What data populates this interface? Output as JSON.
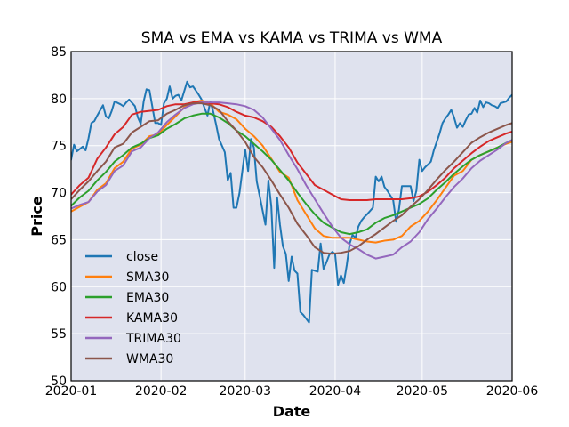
{
  "chart_data": {
    "type": "line",
    "title": "SMA vs EMA vs KAMA vs TRIMA vs WMA",
    "xlabel": "Date",
    "ylabel": "Price",
    "xlim": [
      0,
      152
    ],
    "ylim": [
      50,
      85
    ],
    "xticks": [
      {
        "value": 0,
        "label": "2020-01"
      },
      {
        "value": 31,
        "label": "2020-02"
      },
      {
        "value": 60,
        "label": "2020-03"
      },
      {
        "value": 91,
        "label": "2020-04"
      },
      {
        "value": 121,
        "label": "2020-05"
      },
      {
        "value": 152,
        "label": "2020-06"
      }
    ],
    "yticks": [
      {
        "value": 50,
        "label": "50"
      },
      {
        "value": 55,
        "label": "55"
      },
      {
        "value": 60,
        "label": "60"
      },
      {
        "value": 65,
        "label": "65"
      },
      {
        "value": 70,
        "label": "70"
      },
      {
        "value": 75,
        "label": "75"
      },
      {
        "value": 80,
        "label": "80"
      },
      {
        "value": 85,
        "label": "85"
      }
    ],
    "grid": true,
    "legend_position": "lower-left",
    "series": [
      {
        "name": "close",
        "color": "#1f77b4",
        "x": [
          0,
          1,
          2,
          4,
          5,
          6,
          7,
          8,
          9,
          11,
          12,
          13,
          14,
          15,
          17,
          18,
          19,
          20,
          22,
          23,
          24,
          25,
          26,
          27,
          29,
          30,
          31,
          32,
          33,
          34,
          35,
          36,
          37,
          38,
          40,
          41,
          42,
          44,
          45,
          46,
          47,
          48,
          49,
          50,
          51,
          53,
          54,
          55,
          56,
          57,
          58,
          60,
          61,
          62,
          63,
          64,
          66,
          67,
          68,
          69,
          70,
          71,
          72,
          73,
          74,
          75,
          76,
          77,
          78,
          79,
          80,
          81,
          82,
          83,
          85,
          86,
          87,
          88,
          89,
          90,
          91,
          92,
          93,
          94,
          95,
          96,
          97,
          98,
          99,
          100,
          101,
          102,
          104,
          105,
          106,
          107,
          108,
          109,
          110,
          111,
          112,
          113,
          114,
          115,
          116,
          117,
          118,
          119,
          120,
          121,
          122,
          123,
          124,
          125,
          126,
          127,
          128,
          129,
          130,
          131,
          132,
          133,
          134,
          135,
          136,
          137,
          138,
          139,
          140,
          141,
          142,
          143,
          144,
          145,
          146,
          147,
          148,
          149,
          150,
          151,
          152
        ],
        "values": [
          73.5,
          75.1,
          74.4,
          74.9,
          74.5,
          75.8,
          77.4,
          77.6,
          78.2,
          79.3,
          78.1,
          77.9,
          78.7,
          79.7,
          79.4,
          79.2,
          79.6,
          79.9,
          79.2,
          78.0,
          77.3,
          79.7,
          81.0,
          80.9,
          77.4,
          77.4,
          77.2,
          79.5,
          80.0,
          81.3,
          80.0,
          80.3,
          80.4,
          79.8,
          81.8,
          81.2,
          81.3,
          80.4,
          79.9,
          79.0,
          78.2,
          79.7,
          78.6,
          77.2,
          75.7,
          74.3,
          71.3,
          72.1,
          68.4,
          68.4,
          69.9,
          74.6,
          72.3,
          75.7,
          74.8,
          71.2,
          68.1,
          66.6,
          71.3,
          68.5,
          62.0,
          69.5,
          66.6,
          64.3,
          63.5,
          60.6,
          63.2,
          61.7,
          61.4,
          57.3,
          57.0,
          56.6,
          56.2,
          61.8,
          61.6,
          64.6,
          61.9,
          62.6,
          63.4,
          63.7,
          63.5,
          60.2,
          61.2,
          60.4,
          62.3,
          64.6,
          65.5,
          65.2,
          66.4,
          67.0,
          67.4,
          67.7,
          68.4,
          71.7,
          71.2,
          71.7,
          70.6,
          70.2,
          69.7,
          69.2,
          66.9,
          68.2,
          70.7,
          70.7,
          70.7,
          70.7,
          69.1,
          70.2,
          73.5,
          72.3,
          72.7,
          73.0,
          73.3,
          74.5,
          75.4,
          76.3,
          77.4,
          77.9,
          78.3,
          78.8,
          78.0,
          76.9,
          77.4,
          77.0,
          77.7,
          78.3,
          78.4,
          79.0,
          78.5,
          79.8,
          79.1,
          79.6,
          79.5,
          79.3,
          79.2,
          79.0,
          79.5,
          79.6,
          79.7,
          80.1,
          80.4
        ]
      },
      {
        "name": "SMA30",
        "color": "#ff7f0e",
        "x": [
          0,
          3,
          6,
          9,
          12,
          15,
          18,
          21,
          24,
          27,
          30,
          33,
          36,
          39,
          42,
          45,
          48,
          51,
          54,
          57,
          60,
          63,
          66,
          69,
          72,
          75,
          78,
          81,
          84,
          87,
          90,
          93,
          96,
          99,
          102,
          105,
          108,
          111,
          114,
          117,
          120,
          123,
          126,
          129,
          132,
          135,
          138,
          141,
          144,
          147,
          150,
          152
        ],
        "values": [
          68.0,
          68.5,
          69.0,
          70.3,
          71.0,
          72.6,
          73.3,
          74.7,
          75.1,
          76.0,
          76.2,
          77.2,
          78.1,
          79.1,
          79.6,
          79.8,
          79.5,
          78.6,
          78.3,
          77.8,
          76.8,
          76.0,
          75.0,
          73.6,
          72.2,
          71.6,
          69.2,
          67.7,
          66.2,
          65.4,
          65.2,
          65.2,
          65.2,
          65.0,
          64.8,
          64.7,
          64.9,
          65.0,
          65.4,
          66.4,
          67.0,
          68.0,
          69.2,
          70.5,
          71.8,
          72.3,
          73.5,
          74.0,
          74.4,
          74.8,
          75.2,
          75.4
        ]
      },
      {
        "name": "EMA30",
        "color": "#2ca02c",
        "x": [
          0,
          3,
          6,
          9,
          12,
          15,
          18,
          21,
          24,
          27,
          30,
          33,
          36,
          39,
          42,
          45,
          48,
          51,
          54,
          57,
          60,
          63,
          66,
          69,
          72,
          75,
          78,
          81,
          84,
          87,
          90,
          93,
          96,
          99,
          102,
          105,
          108,
          111,
          114,
          117,
          120,
          123,
          126,
          129,
          132,
          135,
          138,
          141,
          144,
          147,
          150,
          152
        ],
        "values": [
          68.6,
          69.5,
          70.2,
          71.3,
          72.2,
          73.3,
          74.0,
          74.8,
          75.2,
          75.8,
          76.1,
          76.8,
          77.3,
          77.9,
          78.2,
          78.4,
          78.4,
          78.0,
          77.4,
          76.6,
          76.0,
          75.2,
          74.4,
          73.5,
          72.4,
          71.3,
          70.0,
          68.8,
          67.7,
          66.8,
          66.3,
          65.8,
          65.6,
          65.8,
          66.1,
          66.8,
          67.3,
          67.6,
          68.0,
          68.4,
          68.8,
          69.4,
          70.3,
          71.1,
          72.0,
          72.8,
          73.5,
          74.0,
          74.4,
          74.8,
          75.3,
          75.6
        ]
      },
      {
        "name": "KAMA30",
        "color": "#d62728",
        "x": [
          0,
          3,
          6,
          9,
          12,
          15,
          18,
          21,
          24,
          27,
          30,
          33,
          36,
          39,
          42,
          45,
          48,
          51,
          54,
          57,
          60,
          63,
          66,
          69,
          72,
          75,
          78,
          81,
          84,
          87,
          90,
          93,
          96,
          99,
          102,
          105,
          108,
          111,
          114,
          117,
          120,
          123,
          126,
          129,
          132,
          135,
          138,
          141,
          144,
          147,
          150,
          152
        ],
        "values": [
          69.8,
          70.8,
          71.6,
          73.6,
          74.8,
          76.2,
          77.0,
          78.3,
          78.6,
          78.7,
          78.8,
          79.2,
          79.4,
          79.4,
          79.6,
          79.6,
          79.5,
          79.4,
          79.1,
          78.6,
          78.2,
          78.0,
          77.6,
          77.0,
          76.0,
          74.8,
          73.2,
          72.0,
          70.8,
          70.3,
          69.8,
          69.3,
          69.2,
          69.2,
          69.2,
          69.3,
          69.3,
          69.3,
          69.3,
          69.4,
          69.6,
          70.1,
          70.8,
          71.6,
          72.6,
          73.4,
          74.2,
          74.9,
          75.5,
          75.9,
          76.3,
          76.5
        ]
      },
      {
        "name": "TRIMA30",
        "color": "#9467bd",
        "x": [
          0,
          3,
          6,
          9,
          12,
          15,
          18,
          21,
          24,
          27,
          30,
          33,
          36,
          39,
          42,
          45,
          48,
          51,
          54,
          57,
          60,
          63,
          66,
          69,
          72,
          75,
          78,
          81,
          84,
          87,
          90,
          93,
          96,
          99,
          102,
          105,
          108,
          111,
          114,
          117,
          120,
          123,
          126,
          129,
          132,
          135,
          138,
          141,
          144,
          147,
          150,
          152
        ],
        "values": [
          68.3,
          68.7,
          69.0,
          70.1,
          70.8,
          72.3,
          72.9,
          74.4,
          74.8,
          75.8,
          76.4,
          77.5,
          78.3,
          79.0,
          79.4,
          79.6,
          79.6,
          79.6,
          79.5,
          79.4,
          79.2,
          78.8,
          78.0,
          76.8,
          75.6,
          74.0,
          72.5,
          70.8,
          69.3,
          67.8,
          66.4,
          65.2,
          64.5,
          64.0,
          63.4,
          63.0,
          63.2,
          63.4,
          64.2,
          64.8,
          65.8,
          67.2,
          68.3,
          69.5,
          70.6,
          71.5,
          72.6,
          73.4,
          74.0,
          74.6,
          75.3,
          75.6
        ]
      },
      {
        "name": "WMA30",
        "color": "#8c564b",
        "x": [
          0,
          3,
          6,
          9,
          12,
          15,
          18,
          21,
          24,
          27,
          30,
          33,
          36,
          39,
          42,
          45,
          48,
          51,
          54,
          57,
          60,
          63,
          66,
          69,
          72,
          75,
          78,
          81,
          84,
          87,
          90,
          93,
          96,
          99,
          102,
          105,
          108,
          111,
          114,
          117,
          120,
          123,
          126,
          129,
          132,
          135,
          138,
          141,
          144,
          147,
          150,
          152
        ],
        "values": [
          69.3,
          70.3,
          71.2,
          72.3,
          73.3,
          74.8,
          75.2,
          76.4,
          77.0,
          77.6,
          77.7,
          78.4,
          78.8,
          79.3,
          79.5,
          79.5,
          79.3,
          78.8,
          77.6,
          76.6,
          75.4,
          73.8,
          72.7,
          71.3,
          69.8,
          68.4,
          66.7,
          65.5,
          64.2,
          63.6,
          63.5,
          63.6,
          63.8,
          64.3,
          65.0,
          65.6,
          66.3,
          67.0,
          67.6,
          68.5,
          69.3,
          70.3,
          71.4,
          72.4,
          73.3,
          74.3,
          75.3,
          75.9,
          76.4,
          76.8,
          77.2,
          77.4
        ]
      }
    ]
  }
}
